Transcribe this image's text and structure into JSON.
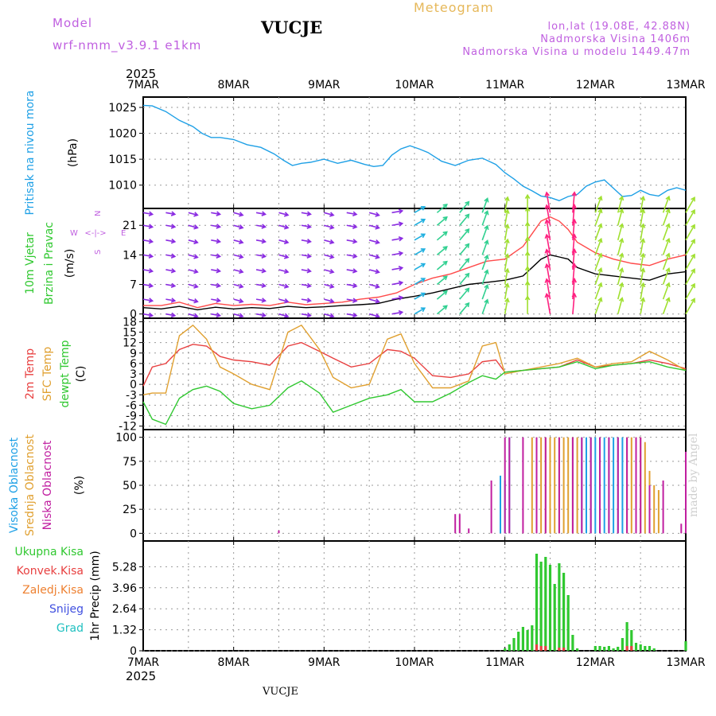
{
  "header": {
    "model_label": "Model",
    "model_version": "wrf-nmm_v3.9.1 e1km",
    "station": "VUCJE",
    "product": "Meteogram",
    "lonlat": "lon,lat (19.08E, 42.88N)",
    "altitude": "Nadmorska Visina 1406m",
    "model_altitude": "Nadmorska Visina u modelu 1449.47m"
  },
  "footer": {
    "station": "VUCJE",
    "credit": "made by Angel"
  },
  "time_axis": {
    "year": "2025",
    "labels": [
      "7MAR",
      "8MAR",
      "9MAR",
      "10MAR",
      "11MAR",
      "12MAR",
      "13MAR"
    ]
  },
  "chart_data": [
    {
      "id": "pressure",
      "type": "line",
      "ylabel": [
        "Pritisak na nivou mora",
        "(hPa)"
      ],
      "ylim": [
        1005.5,
        1027
      ],
      "yticks": [
        1010,
        1015,
        1020,
        1025
      ],
      "grid": true,
      "series": [
        {
          "name": "Pritisak na nivou mora",
          "color": "#1ea0e6",
          "x": [
            0,
            0.1,
            0.25,
            0.4,
            0.55,
            0.65,
            0.75,
            0.85,
            1.0,
            1.15,
            1.3,
            1.45,
            1.55,
            1.65,
            1.75,
            1.85,
            2.0,
            2.15,
            2.3,
            2.45,
            2.55,
            2.65,
            2.75,
            2.85,
            2.95,
            3.05,
            3.15,
            3.3,
            3.45,
            3.6,
            3.75,
            3.9,
            4.0,
            4.1,
            4.2,
            4.3,
            4.4,
            4.5,
            4.6,
            4.7,
            4.8,
            4.9,
            5.0,
            5.1,
            5.2,
            5.3,
            5.4,
            5.5,
            5.6,
            5.7,
            5.8,
            5.9,
            6.0
          ],
          "y": [
            1025.4,
            1025.3,
            1024.2,
            1022.5,
            1021.3,
            1020.0,
            1019.2,
            1019.2,
            1018.8,
            1017.8,
            1017.3,
            1016.0,
            1014.8,
            1013.8,
            1014.2,
            1014.4,
            1015.0,
            1014.2,
            1014.8,
            1014.0,
            1013.6,
            1013.8,
            1015.8,
            1017.0,
            1017.6,
            1017.0,
            1016.3,
            1014.6,
            1013.8,
            1014.8,
            1015.2,
            1014.0,
            1012.4,
            1011.2,
            1009.8,
            1008.9,
            1007.9,
            1007.6,
            1007.0,
            1007.8,
            1008.2,
            1009.8,
            1010.6,
            1011.0,
            1009.4,
            1007.8,
            1008.0,
            1009.0,
            1008.2,
            1007.9,
            1009.0,
            1009.5,
            1009.0
          ]
        }
      ]
    },
    {
      "id": "wind",
      "type": "line",
      "ylabel": [
        "10m Vjetar",
        "Brzina i Pravac",
        "(m/s)"
      ],
      "ylim": [
        -1,
        25
      ],
      "yticks": [
        0,
        7,
        14,
        21
      ],
      "grid": true,
      "compass_glyph": {
        "n": "N",
        "s": "S",
        "e": "E",
        "w": "W",
        "arrows": "<-|->"
      },
      "series": [
        {
          "name": "wind speed",
          "color": "#000000",
          "x": [
            0,
            0.2,
            0.4,
            0.6,
            0.8,
            1.0,
            1.2,
            1.4,
            1.6,
            1.8,
            2.0,
            2.2,
            2.4,
            2.6,
            2.8,
            3.0,
            3.2,
            3.4,
            3.6,
            3.8,
            4.0,
            4.1,
            4.2,
            4.3,
            4.4,
            4.5,
            4.6,
            4.7,
            4.8,
            5.0,
            5.2,
            5.4,
            5.6,
            5.8,
            6.0
          ],
          "y": [
            1.5,
            1.2,
            1.8,
            1.0,
            1.6,
            1.2,
            1.5,
            1.3,
            1.8,
            1.5,
            1.7,
            2.0,
            2.2,
            2.5,
            3.5,
            4.2,
            5.0,
            6.0,
            7.0,
            7.5,
            8.0,
            8.5,
            9.0,
            11.0,
            13.0,
            14.0,
            13.5,
            13.0,
            11.0,
            9.5,
            9.0,
            8.5,
            8.0,
            9.5,
            10.0
          ]
        },
        {
          "name": "wind gust",
          "color": "#ff4a4a",
          "x": [
            0,
            0.2,
            0.4,
            0.6,
            0.8,
            1.0,
            1.2,
            1.4,
            1.6,
            1.8,
            2.0,
            2.2,
            2.4,
            2.6,
            2.8,
            3.0,
            3.2,
            3.4,
            3.6,
            3.8,
            4.0,
            4.1,
            4.2,
            4.3,
            4.4,
            4.5,
            4.6,
            4.7,
            4.8,
            5.0,
            5.2,
            5.4,
            5.6,
            5.8,
            6.0
          ],
          "y": [
            2.0,
            2.0,
            2.8,
            1.5,
            2.5,
            2.0,
            2.3,
            2.0,
            2.8,
            2.2,
            2.5,
            2.8,
            3.5,
            4.0,
            5.0,
            7.0,
            8.5,
            9.5,
            11.0,
            12.5,
            13.0,
            14.5,
            16.0,
            19.0,
            22.0,
            23.0,
            22.0,
            20.0,
            17.0,
            14.5,
            13.0,
            12.0,
            11.5,
            13.0,
            14.0
          ]
        }
      ],
      "barbs": {
        "levels": [
          0,
          3.5,
          7,
          10.5,
          14,
          17.5,
          21,
          24
        ],
        "x": [
          0,
          0.25,
          0.5,
          0.75,
          1.0,
          1.25,
          1.5,
          1.75,
          2.0,
          2.25,
          2.5,
          2.75,
          3.0,
          3.25,
          3.5,
          3.75,
          4.0,
          4.25,
          4.5,
          4.75,
          5.0,
          5.25,
          5.5,
          5.75,
          6.0
        ],
        "direction_deg": [
          280,
          280,
          285,
          280,
          285,
          280,
          285,
          280,
          285,
          280,
          285,
          260,
          240,
          230,
          220,
          200,
          190,
          180,
          170,
          185,
          200,
          195,
          190,
          200,
          210
        ],
        "speed": [
          1.5,
          1.3,
          1.6,
          1.2,
          1.5,
          1.3,
          1.6,
          1.4,
          1.8,
          2.0,
          2.2,
          2.8,
          4.0,
          5.0,
          6.5,
          7.5,
          8.0,
          10.0,
          13.0,
          13.0,
          9.5,
          9.0,
          8.5,
          9.5,
          10.0
        ]
      }
    },
    {
      "id": "temperature",
      "type": "line",
      "ylabel": [
        "2m Temp",
        "SFC Temp",
        "dewpt Temp",
        "(C)"
      ],
      "ylim": [
        -13,
        19
      ],
      "yticks": [
        -12,
        -9,
        -6,
        -3,
        0,
        3,
        6,
        9,
        12,
        15,
        18
      ],
      "grid": true,
      "series": [
        {
          "name": "2m Temp",
          "color": "#e84040",
          "x": [
            0,
            0.1,
            0.25,
            0.4,
            0.55,
            0.7,
            0.85,
            1.0,
            1.2,
            1.4,
            1.6,
            1.75,
            1.95,
            2.1,
            2.3,
            2.5,
            2.7,
            2.85,
            3.0,
            3.2,
            3.4,
            3.6,
            3.75,
            3.9,
            4.0,
            4.2,
            4.4,
            4.6,
            4.8,
            5.0,
            5.2,
            5.4,
            5.6,
            5.8,
            6.0
          ],
          "y": [
            -0.5,
            5.0,
            6.0,
            10.0,
            11.5,
            11.0,
            8.0,
            7.0,
            6.5,
            5.5,
            11.0,
            12.0,
            9.5,
            7.5,
            5.0,
            6.0,
            10.0,
            9.5,
            7.5,
            2.5,
            2.0,
            3.0,
            6.5,
            7.0,
            3.5,
            4.0,
            4.5,
            5.0,
            7.0,
            5.0,
            5.5,
            6.0,
            7.0,
            6.0,
            4.5
          ]
        },
        {
          "name": "SFC Temp",
          "color": "#e0a030",
          "x": [
            0,
            0.1,
            0.25,
            0.4,
            0.55,
            0.7,
            0.85,
            1.0,
            1.2,
            1.4,
            1.6,
            1.75,
            1.95,
            2.1,
            2.3,
            2.5,
            2.7,
            2.85,
            3.0,
            3.2,
            3.4,
            3.6,
            3.75,
            3.9,
            4.0,
            4.2,
            4.4,
            4.6,
            4.8,
            5.0,
            5.2,
            5.4,
            5.6,
            5.8,
            6.0
          ],
          "y": [
            -3.0,
            -2.5,
            -2.5,
            14.0,
            17.0,
            13.0,
            5.0,
            3.0,
            0.0,
            -1.5,
            15.0,
            17.0,
            10.0,
            2.0,
            -1.0,
            0.0,
            13.0,
            14.5,
            6.0,
            -1.0,
            -1.0,
            1.0,
            11.0,
            12.0,
            3.0,
            4.0,
            5.0,
            6.0,
            7.5,
            5.0,
            6.0,
            6.5,
            9.5,
            7.0,
            4.0
          ]
        },
        {
          "name": "dewpt Temp",
          "color": "#30c830",
          "x": [
            0,
            0.1,
            0.25,
            0.4,
            0.55,
            0.7,
            0.85,
            1.0,
            1.2,
            1.4,
            1.6,
            1.75,
            1.95,
            2.1,
            2.3,
            2.5,
            2.7,
            2.85,
            3.0,
            3.2,
            3.4,
            3.6,
            3.75,
            3.9,
            4.0,
            4.2,
            4.4,
            4.6,
            4.8,
            5.0,
            5.2,
            5.4,
            5.6,
            5.8,
            6.0
          ],
          "y": [
            -5.0,
            -10.0,
            -11.5,
            -4.0,
            -1.5,
            -0.5,
            -2.0,
            -5.5,
            -7.0,
            -6.0,
            -1.0,
            1.0,
            -2.5,
            -8.0,
            -6.0,
            -4.0,
            -3.0,
            -1.5,
            -5.0,
            -5.0,
            -2.5,
            0.5,
            2.5,
            1.5,
            3.5,
            4.0,
            4.5,
            5.0,
            6.5,
            4.5,
            5.5,
            6.0,
            6.5,
            5.0,
            4.0
          ]
        }
      ]
    },
    {
      "id": "cloud",
      "type": "bar",
      "ylabel": [
        "Visoka Oblacnost",
        "Srednja Oblacnost",
        "Niska Oblacnost",
        "(%)"
      ],
      "ylim": [
        -8,
        108
      ],
      "yticks": [
        0,
        25,
        50,
        75,
        100
      ],
      "grid": true,
      "series": [
        {
          "name": "Visoka Oblacnost",
          "color": "#1ea0e6",
          "x": [
            3.95,
            4.0,
            4.05,
            4.85,
            4.9,
            4.95,
            5.0,
            5.05,
            5.1,
            5.15,
            5.2,
            5.25,
            5.3
          ],
          "values": [
            60,
            55,
            100,
            100,
            100,
            100,
            100,
            100,
            100,
            100,
            100,
            100,
            100
          ]
        },
        {
          "name": "Srednja Oblacnost",
          "color": "#e0a030",
          "x": [
            4.3,
            4.35,
            4.4,
            4.45,
            4.5,
            4.55,
            4.6,
            4.65,
            4.7,
            4.75,
            4.8,
            5.35,
            5.4,
            5.45,
            5.5,
            5.55,
            5.6,
            5.65,
            5.7
          ],
          "values": [
            100,
            100,
            100,
            100,
            100,
            100,
            100,
            100,
            100,
            100,
            100,
            100,
            100,
            100,
            100,
            95,
            65,
            50,
            45
          ]
        },
        {
          "name": "Niska Oblacnost",
          "color": "#c01ea0",
          "x": [
            1.5,
            3.45,
            3.5,
            3.6,
            3.85,
            4.0,
            4.05,
            4.2,
            4.35,
            4.45,
            4.6,
            4.75,
            4.85,
            4.95,
            5.05,
            5.15,
            5.25,
            5.35,
            5.45,
            5.5,
            5.6,
            5.75,
            5.95,
            6.0
          ],
          "values": [
            3,
            20,
            20,
            5,
            55,
            100,
            100,
            100,
            100,
            100,
            100,
            100,
            100,
            100,
            100,
            100,
            100,
            100,
            100,
            100,
            50,
            55,
            10,
            85
          ]
        }
      ]
    },
    {
      "id": "precip",
      "type": "bar",
      "ylabel": [
        "1hr Precip (mm)"
      ],
      "legend_labels": [
        "Ukupna Kisa",
        "Konvek.Kisa",
        "Zaledj.Kisa",
        "Snijeg",
        "Grad"
      ],
      "legend_colors": [
        "#30c830",
        "#e84040",
        "#ee8030",
        "#4050e0",
        "#20c0c0"
      ],
      "ylim": [
        0,
        6.9
      ],
      "yticks": [
        0,
        1.32,
        2.64,
        3.96,
        5.28
      ],
      "grid": true,
      "series": [
        {
          "name": "Ukupna Kisa",
          "color": "#30c830",
          "x": [
            4.0,
            4.05,
            4.1,
            4.15,
            4.2,
            4.25,
            4.3,
            4.35,
            4.4,
            4.45,
            4.5,
            4.55,
            4.6,
            4.65,
            4.7,
            4.75,
            4.8,
            5.0,
            5.05,
            5.1,
            5.15,
            5.2,
            5.25,
            5.3,
            5.35,
            5.4,
            5.45,
            5.5,
            5.55,
            5.6,
            5.65,
            6.0
          ],
          "values": [
            0.15,
            0.4,
            0.8,
            1.2,
            1.5,
            1.3,
            1.6,
            6.1,
            5.6,
            5.9,
            5.4,
            4.2,
            5.5,
            4.9,
            3.5,
            1.0,
            0.15,
            0.3,
            0.3,
            0.25,
            0.3,
            0.15,
            0.25,
            0.8,
            1.8,
            1.3,
            0.5,
            0.4,
            0.3,
            0.3,
            0.15,
            0.6
          ]
        },
        {
          "name": "Konvek.Kisa",
          "color": "#e84040",
          "x": [
            4.35,
            4.4,
            4.45,
            4.6,
            4.65,
            5.35,
            5.4
          ],
          "values": [
            0.4,
            0.3,
            0.3,
            0.2,
            0.2,
            0.3,
            0.3
          ]
        }
      ]
    }
  ]
}
